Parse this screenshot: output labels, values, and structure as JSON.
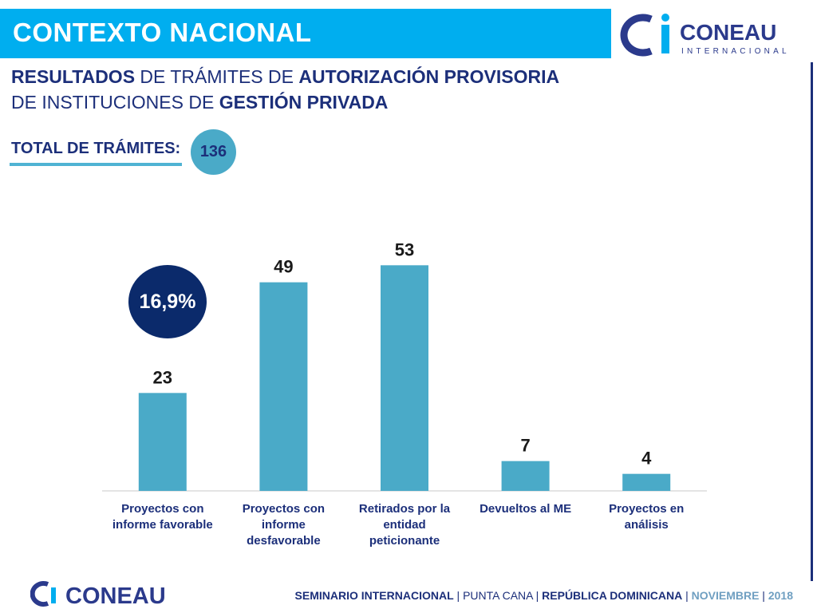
{
  "header": {
    "title": "CONTEXTO NACIONAL",
    "logo_word": "CONEAU",
    "logo_sub": "INTERNACIONAL"
  },
  "subtitle": {
    "line1_bold_a": "RESULTADOS",
    "line1_normal_a": " DE TRÁMITES DE ",
    "line1_bold_b": "AUTORIZACIÓN PROVISORIA",
    "line2_normal_a": "DE INSTITUCIONES DE ",
    "line2_bold_a": "GESTIÓN PRIVADA"
  },
  "total": {
    "label": "TOTAL DE TRÁMITES:",
    "value": "136"
  },
  "highlight": {
    "percent": "16,9%"
  },
  "chart_data": {
    "type": "bar",
    "title": "",
    "xlabel": "",
    "ylabel": "",
    "ylim": [
      0,
      60
    ],
    "grid": false,
    "categories": [
      [
        "Proyectos con",
        "informe favorable"
      ],
      [
        "Proyectos con",
        "informe",
        "desfavorable"
      ],
      [
        "Retirados por la",
        "entidad",
        "peticionante"
      ],
      [
        "Devueltos al ME"
      ],
      [
        "Proyectos en",
        "análisis"
      ]
    ],
    "values": [
      23,
      49,
      53,
      7,
      4
    ],
    "data_labels": [
      "23",
      "49",
      "53",
      "7",
      "4"
    ],
    "bar_color": "#4aaac8"
  },
  "footer": {
    "logo_word": "CONEAU",
    "part1": "SEMINARIO INTERNACIONAL",
    "sep": " | ",
    "part2": "PUNTA CANA",
    "part3": "REPÚBLICA DOMINICANA",
    "part4": "NOVIEMBRE",
    "part5": "2018"
  }
}
